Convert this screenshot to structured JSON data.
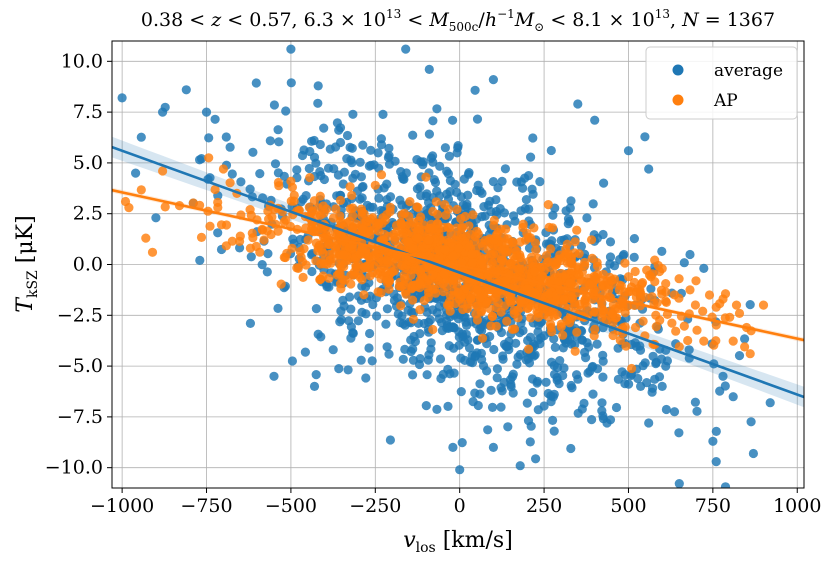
{
  "chart_data": {
    "type": "scatter",
    "title": "0.38 < z < 0.57, 6.3 × 10^13 < M_500c/h^−1 M_⊙ < 8.1 × 10^13, N = 1367",
    "title_parts": {
      "p1": "0.38 < ",
      "z": "z",
      "p2": " < 0.57,  6.3 × 10",
      "e1": "13",
      "p3": " < ",
      "M": "M",
      "sub": "500c",
      "p4": "/",
      "h": "h",
      "e2": "−1",
      "M2": "M",
      "sun": "⊙",
      "p5": " < 8.1 × 10",
      "e3": "13",
      "p6": ", ",
      "N": "N",
      "p7": " = 1367"
    },
    "xlabel": "v_los [km/s]",
    "ylabel": "T_kSZ [μK]",
    "xlabel_parts": {
      "v": "v",
      "sub": "los",
      "unit": " [km/s]"
    },
    "ylabel_parts": {
      "T": "T",
      "sub": "kSZ",
      "unit": " [μK]"
    },
    "xlim": [
      -1030,
      1020
    ],
    "ylim": [
      -11,
      11
    ],
    "xticks": [
      -1000,
      -750,
      -500,
      -250,
      0,
      250,
      500,
      750,
      1000
    ],
    "xtick_labels": [
      "−1000",
      "−750",
      "−500",
      "−250",
      "0",
      "250",
      "500",
      "750",
      "1000"
    ],
    "yticks": [
      -10,
      -7.5,
      -5,
      -2.5,
      0,
      2.5,
      5,
      7.5,
      10
    ],
    "ytick_labels": [
      "−10.0",
      "−7.5",
      "−5.0",
      "−2.5",
      "0.0",
      "2.5",
      "5.0",
      "7.5",
      "10.0"
    ],
    "grid": true,
    "legend_position": "top-right",
    "series": [
      {
        "name": "average",
        "color": "#1f77b4",
        "n_points": 1367,
        "fit": {
          "slope": -0.006,
          "intercept": -0.4,
          "ci_halfwidth": [
            0.25,
            0.5
          ]
        },
        "scatter_sigma_y": 2.8,
        "sample_points": [
          [
            -1000,
            8.2
          ],
          [
            -880,
            7.5
          ],
          [
            -810,
            8.6
          ],
          [
            -750,
            7.5
          ],
          [
            -500,
            10.6
          ],
          [
            -160,
            10.6
          ],
          [
            -90,
            9.6
          ],
          [
            100,
            9.1
          ],
          [
            350,
            7.9
          ],
          [
            400,
            7.1
          ],
          [
            500,
            5.6
          ],
          [
            560,
            4.7
          ],
          [
            -960,
            4.5
          ],
          [
            -900,
            2.3
          ],
          [
            -770,
            0.2
          ],
          [
            -620,
            -2.9
          ],
          [
            -550,
            -5.5
          ],
          [
            -430,
            -6.0
          ],
          [
            -20,
            -9.0
          ],
          [
            0,
            -10.1
          ],
          [
            100,
            -9.0
          ],
          [
            280,
            -8.2
          ],
          [
            560,
            -7.8
          ],
          [
            750,
            -8.7
          ],
          [
            760,
            -9.7
          ],
          [
            870,
            -9.3
          ],
          [
            920,
            -6.8
          ],
          [
            780,
            -5.5
          ],
          [
            680,
            -4.2
          ],
          [
            600,
            -6.0
          ]
        ]
      },
      {
        "name": "AP",
        "color": "#ff7f0e",
        "n_points": 1367,
        "fit": {
          "slope": -0.0036,
          "intercept": -0.05,
          "ci_halfwidth": [
            0.08,
            0.12
          ]
        },
        "scatter_sigma_y": 1.1,
        "sample_points": [
          [
            -990,
            3.1
          ],
          [
            -980,
            2.8
          ],
          [
            -930,
            1.3
          ],
          [
            -910,
            0.6
          ],
          [
            -880,
            4.6
          ],
          [
            -830,
            2.9
          ],
          [
            -700,
            4.7
          ],
          [
            -660,
            3.5
          ],
          [
            -650,
            1.4
          ],
          [
            -620,
            0.8
          ],
          [
            -500,
            4.1
          ],
          [
            -490,
            3.4
          ],
          [
            -320,
            3.4
          ],
          [
            -250,
            3.9
          ],
          [
            -100,
            4.3
          ],
          [
            200,
            -1.2
          ],
          [
            350,
            -2.5
          ],
          [
            500,
            -0.6
          ],
          [
            610,
            -1.8
          ],
          [
            650,
            -0.7
          ],
          [
            720,
            -2.3
          ],
          [
            760,
            -2.1
          ],
          [
            800,
            -2.6
          ],
          [
            850,
            -3.1
          ],
          [
            820,
            -2.0
          ],
          [
            900,
            -2.0
          ],
          [
            780,
            -1.7
          ],
          [
            740,
            -1.5
          ],
          [
            700,
            -0.8
          ],
          [
            600,
            -0.2
          ]
        ]
      }
    ]
  }
}
